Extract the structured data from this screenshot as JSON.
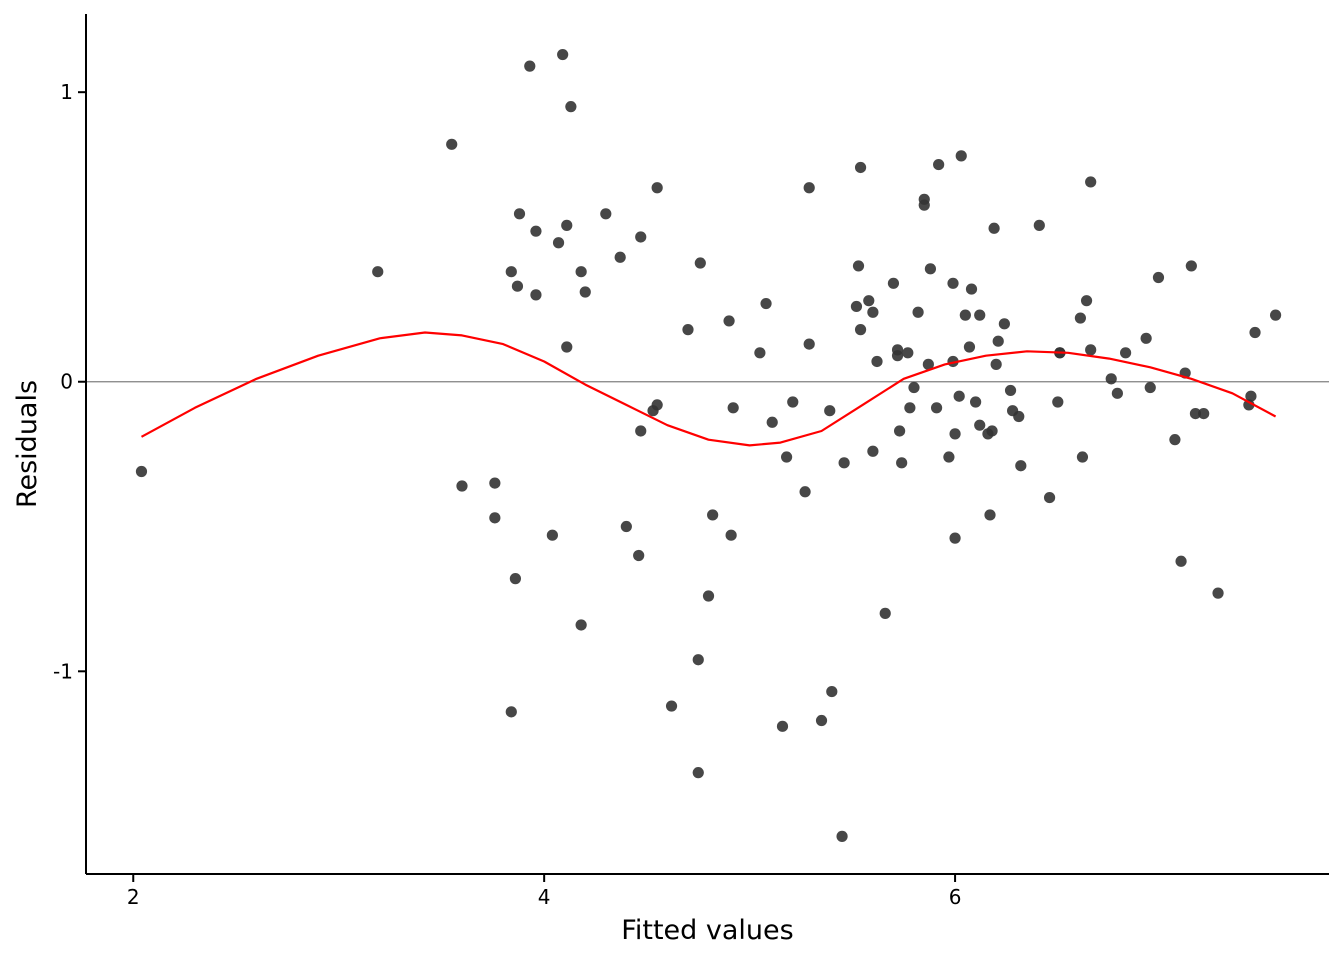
{
  "chart_data": {
    "type": "scatter",
    "title": "",
    "xlabel": "Fitted values",
    "ylabel": "Residuals",
    "xlim": [
      1.77,
      7.82
    ],
    "ylim": [
      -1.7,
      1.27
    ],
    "x_ticks": [
      2,
      4,
      6
    ],
    "x_tick_labels": [
      "2",
      "4",
      "6"
    ],
    "y_ticks": [
      -1,
      0,
      1
    ],
    "y_tick_labels": [
      "-1",
      "0",
      "1"
    ],
    "grid": false,
    "reference_line": {
      "y": 0,
      "color": "#808080"
    },
    "point_color": "#333333",
    "smooth_color": "#ff0000",
    "points": [
      [
        2.04,
        -0.31
      ],
      [
        3.19,
        0.38
      ],
      [
        3.55,
        0.82
      ],
      [
        3.6,
        -0.36
      ],
      [
        3.76,
        -0.35
      ],
      [
        3.76,
        -0.47
      ],
      [
        3.84,
        0.38
      ],
      [
        3.84,
        -1.14
      ],
      [
        3.86,
        -0.68
      ],
      [
        3.87,
        0.33
      ],
      [
        3.88,
        0.58
      ],
      [
        3.93,
        1.09
      ],
      [
        3.96,
        0.52
      ],
      [
        3.96,
        0.3
      ],
      [
        4.04,
        -0.53
      ],
      [
        4.07,
        0.48
      ],
      [
        4.09,
        1.13
      ],
      [
        4.11,
        0.54
      ],
      [
        4.11,
        0.12
      ],
      [
        4.13,
        0.95
      ],
      [
        4.18,
        0.38
      ],
      [
        4.18,
        -0.84
      ],
      [
        4.2,
        0.31
      ],
      [
        4.3,
        0.58
      ],
      [
        4.37,
        0.43
      ],
      [
        4.4,
        -0.5
      ],
      [
        4.46,
        -0.6
      ],
      [
        4.47,
        0.5
      ],
      [
        4.47,
        -0.17
      ],
      [
        4.53,
        -0.1
      ],
      [
        4.55,
        -0.08
      ],
      [
        4.55,
        0.67
      ],
      [
        4.62,
        -1.12
      ],
      [
        4.7,
        0.18
      ],
      [
        4.75,
        -0.96
      ],
      [
        4.75,
        -1.35
      ],
      [
        4.76,
        0.41
      ],
      [
        4.8,
        -0.74
      ],
      [
        4.82,
        -0.46
      ],
      [
        4.9,
        0.21
      ],
      [
        4.91,
        -0.53
      ],
      [
        4.92,
        -0.09
      ],
      [
        5.05,
        0.1
      ],
      [
        5.08,
        0.27
      ],
      [
        5.11,
        -0.14
      ],
      [
        5.16,
        -1.19
      ],
      [
        5.18,
        -0.26
      ],
      [
        5.21,
        -0.07
      ],
      [
        5.27,
        -0.38
      ],
      [
        5.29,
        0.67
      ],
      [
        5.29,
        0.13
      ],
      [
        5.35,
        -1.17
      ],
      [
        5.39,
        -0.1
      ],
      [
        5.4,
        -1.07
      ],
      [
        5.45,
        -1.57
      ],
      [
        5.46,
        -0.28
      ],
      [
        5.52,
        0.26
      ],
      [
        5.53,
        0.4
      ],
      [
        5.54,
        0.74
      ],
      [
        5.54,
        0.18
      ],
      [
        5.58,
        0.28
      ],
      [
        5.6,
        0.24
      ],
      [
        5.6,
        -0.24
      ],
      [
        5.62,
        0.07
      ],
      [
        5.66,
        -0.8
      ],
      [
        5.7,
        0.34
      ],
      [
        5.72,
        0.11
      ],
      [
        5.72,
        0.09
      ],
      [
        5.73,
        -0.17
      ],
      [
        5.74,
        -0.28
      ],
      [
        5.77,
        0.1
      ],
      [
        5.78,
        -0.09
      ],
      [
        5.8,
        -0.02
      ],
      [
        5.82,
        0.24
      ],
      [
        5.85,
        0.63
      ],
      [
        5.85,
        0.61
      ],
      [
        5.87,
        0.06
      ],
      [
        5.88,
        0.39
      ],
      [
        5.91,
        -0.09
      ],
      [
        5.92,
        0.75
      ],
      [
        5.97,
        -0.26
      ],
      [
        5.99,
        0.34
      ],
      [
        5.99,
        0.07
      ],
      [
        6.0,
        -0.18
      ],
      [
        6.0,
        -0.54
      ],
      [
        6.02,
        -0.05
      ],
      [
        6.03,
        0.78
      ],
      [
        6.05,
        0.23
      ],
      [
        6.07,
        0.12
      ],
      [
        6.08,
        0.32
      ],
      [
        6.1,
        -0.07
      ],
      [
        6.12,
        -0.15
      ],
      [
        6.12,
        0.23
      ],
      [
        6.16,
        -0.18
      ],
      [
        6.17,
        -0.46
      ],
      [
        6.18,
        -0.17
      ],
      [
        6.19,
        0.53
      ],
      [
        6.2,
        0.06
      ],
      [
        6.21,
        0.14
      ],
      [
        6.24,
        0.2
      ],
      [
        6.27,
        -0.03
      ],
      [
        6.28,
        -0.1
      ],
      [
        6.31,
        -0.12
      ],
      [
        6.32,
        -0.29
      ],
      [
        6.41,
        0.54
      ],
      [
        6.46,
        -0.4
      ],
      [
        6.5,
        -0.07
      ],
      [
        6.51,
        0.1
      ],
      [
        6.51,
        0.1
      ],
      [
        6.61,
        0.22
      ],
      [
        6.62,
        -0.26
      ],
      [
        6.64,
        0.28
      ],
      [
        6.66,
        0.11
      ],
      [
        6.66,
        0.69
      ],
      [
        6.76,
        0.01
      ],
      [
        6.79,
        -0.04
      ],
      [
        6.83,
        0.1
      ],
      [
        6.93,
        0.15
      ],
      [
        6.95,
        -0.02
      ],
      [
        6.99,
        0.36
      ],
      [
        7.07,
        -0.2
      ],
      [
        7.1,
        -0.62
      ],
      [
        7.12,
        0.03
      ],
      [
        7.15,
        0.4
      ],
      [
        7.17,
        -0.11
      ],
      [
        7.21,
        -0.11
      ],
      [
        7.28,
        -0.73
      ],
      [
        7.43,
        -0.08
      ],
      [
        7.44,
        -0.05
      ],
      [
        7.46,
        0.17
      ],
      [
        7.56,
        0.23
      ]
    ],
    "smooth_line": [
      [
        2.04,
        -0.19
      ],
      [
        2.3,
        -0.09
      ],
      [
        2.6,
        0.01
      ],
      [
        2.9,
        0.09
      ],
      [
        3.2,
        0.15
      ],
      [
        3.42,
        0.17
      ],
      [
        3.6,
        0.16
      ],
      [
        3.8,
        0.13
      ],
      [
        4.0,
        0.07
      ],
      [
        4.2,
        -0.01
      ],
      [
        4.4,
        -0.08
      ],
      [
        4.6,
        -0.15
      ],
      [
        4.8,
        -0.2
      ],
      [
        5.0,
        -0.22
      ],
      [
        5.15,
        -0.21
      ],
      [
        5.35,
        -0.17
      ],
      [
        5.55,
        -0.08
      ],
      [
        5.75,
        0.01
      ],
      [
        5.95,
        0.06
      ],
      [
        6.15,
        0.09
      ],
      [
        6.35,
        0.105
      ],
      [
        6.55,
        0.1
      ],
      [
        6.75,
        0.08
      ],
      [
        6.95,
        0.05
      ],
      [
        7.15,
        0.01
      ],
      [
        7.35,
        -0.04
      ],
      [
        7.56,
        -0.12
      ]
    ]
  }
}
